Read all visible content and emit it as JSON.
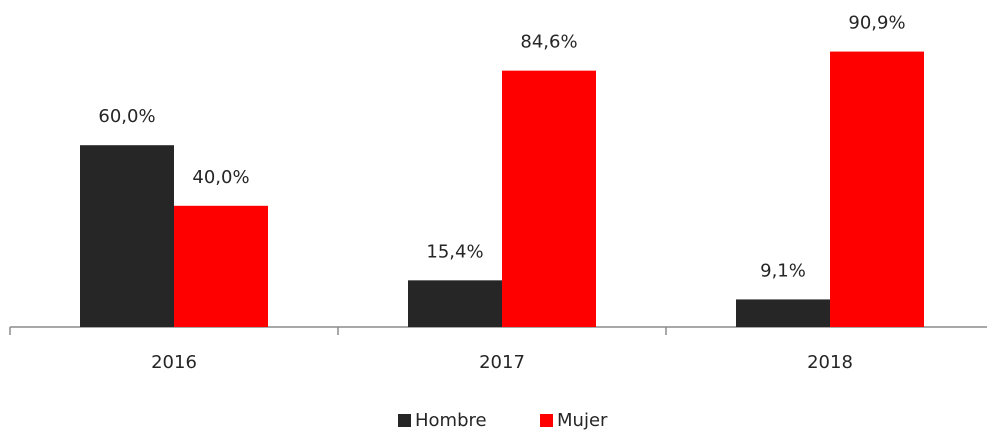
{
  "chart_data": {
    "type": "bar",
    "categories": [
      "2016",
      "2017",
      "2018"
    ],
    "series": [
      {
        "name": "Hombre",
        "color": "#262626",
        "values": [
          60.0,
          15.4,
          9.1
        ],
        "value_labels": [
          "60,0%",
          "15,4%",
          "9,1%"
        ]
      },
      {
        "name": "Mujer",
        "color": "#ff0000",
        "values": [
          40.0,
          84.6,
          90.9
        ],
        "value_labels": [
          "40,0%",
          "84,6%",
          "90,9%"
        ]
      }
    ],
    "legend": "bottom"
  }
}
